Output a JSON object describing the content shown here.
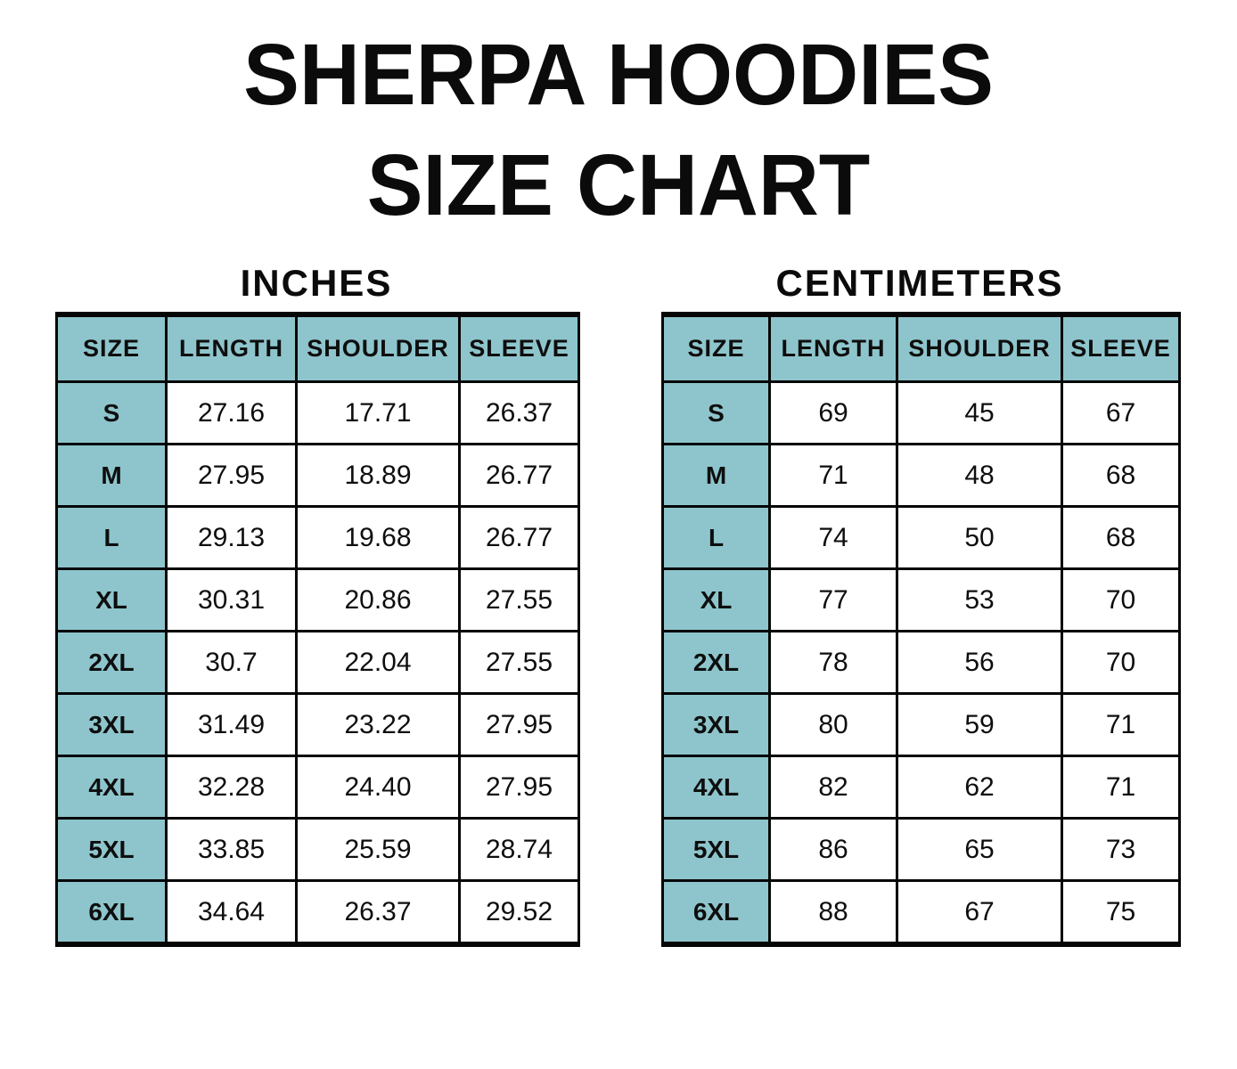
{
  "page": {
    "title_line1": "SHERPA HOODIES",
    "title_line2": "SIZE CHART"
  },
  "colors": {
    "header_teal": "#8EC5CC",
    "border": "#060606",
    "text": "#0b0b0b",
    "background": "#ffffff"
  },
  "chart_data": [
    {
      "type": "table",
      "subtitle": "INCHES",
      "columns": [
        "SIZE",
        "LENGTH",
        "SHOULDER",
        "SLEEVE"
      ],
      "rows": [
        [
          "S",
          "27.16",
          "17.71",
          "26.37"
        ],
        [
          "M",
          "27.95",
          "18.89",
          "26.77"
        ],
        [
          "L",
          "29.13",
          "19.68",
          "26.77"
        ],
        [
          "XL",
          "30.31",
          "20.86",
          "27.55"
        ],
        [
          "2XL",
          "30.7",
          "22.04",
          "27.55"
        ],
        [
          "3XL",
          "31.49",
          "23.22",
          "27.95"
        ],
        [
          "4XL",
          "32.28",
          "24.40",
          "27.95"
        ],
        [
          "5XL",
          "33.85",
          "25.59",
          "28.74"
        ],
        [
          "6XL",
          "34.64",
          "26.37",
          "29.52"
        ]
      ]
    },
    {
      "type": "table",
      "subtitle": "CENTIMETERS",
      "columns": [
        "SIZE",
        "LENGTH",
        "SHOULDER",
        "SLEEVE"
      ],
      "rows": [
        [
          "S",
          "69",
          "45",
          "67"
        ],
        [
          "M",
          "71",
          "48",
          "68"
        ],
        [
          "L",
          "74",
          "50",
          "68"
        ],
        [
          "XL",
          "77",
          "53",
          "70"
        ],
        [
          "2XL",
          "78",
          "56",
          "70"
        ],
        [
          "3XL",
          "80",
          "59",
          "71"
        ],
        [
          "4XL",
          "82",
          "62",
          "71"
        ],
        [
          "5XL",
          "86",
          "65",
          "73"
        ],
        [
          "6XL",
          "88",
          "67",
          "75"
        ]
      ]
    }
  ]
}
